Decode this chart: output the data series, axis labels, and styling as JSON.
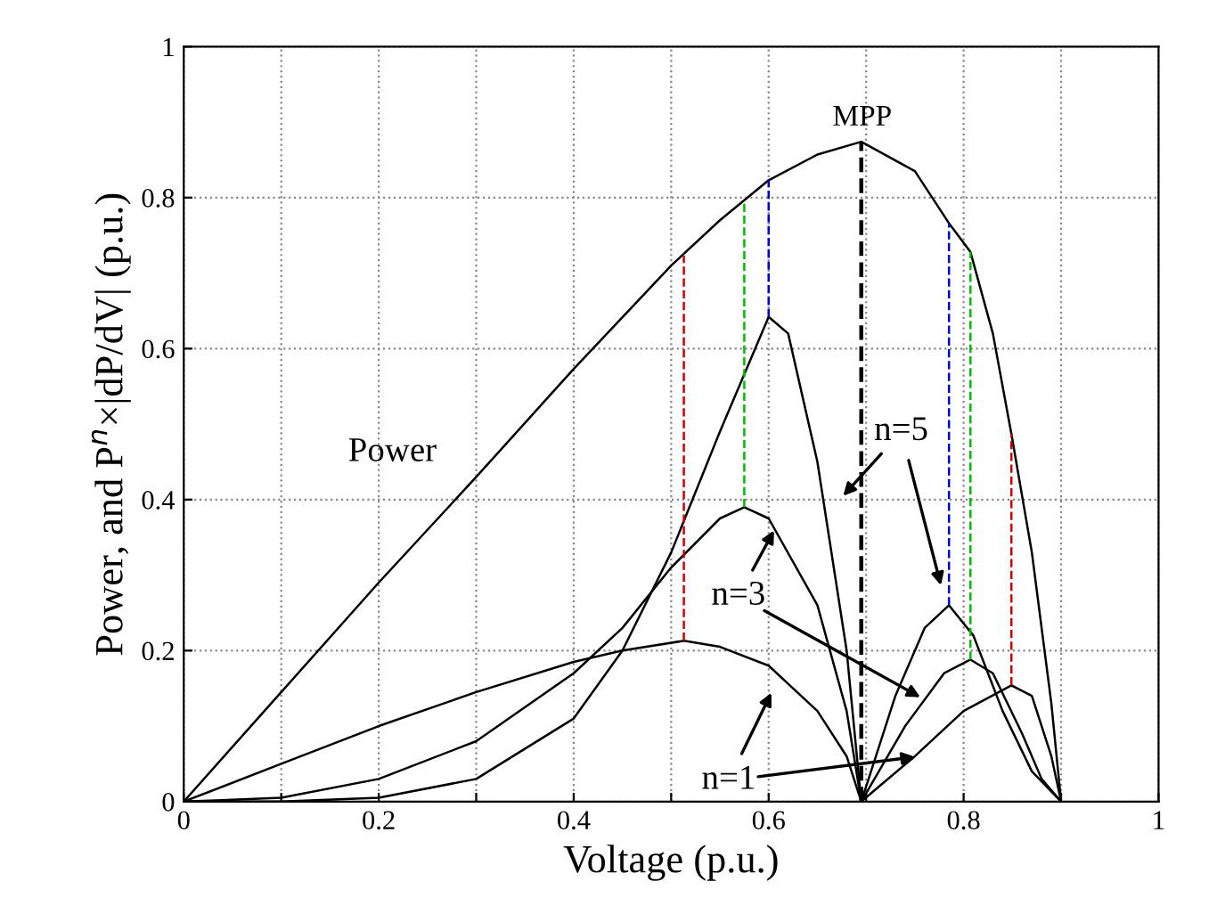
{
  "chart_data": {
    "type": "line",
    "xlabel": "Voltage (p.u.)",
    "ylabel": "Power, and P$^{n}$×|dP/dV| (p.u.)",
    "xlim": [
      0,
      1
    ],
    "ylim": [
      0,
      1
    ],
    "xticks": [
      0,
      {
        "value": 0.1,
        "label": null
      },
      0.2,
      {
        "value": 0.3,
        "label": null
      },
      0.4,
      {
        "value": 0.5,
        "label": null
      },
      0.6,
      {
        "value": 0.7,
        "label": null
      },
      0.8,
      {
        "value": 0.9,
        "label": null
      },
      1
    ],
    "yticks": [
      0,
      0.2,
      0.4,
      0.6,
      0.8,
      1
    ],
    "grid": true,
    "line_style": "solid",
    "marker": "none",
    "series": [
      {
        "color": "#000000",
        "x": [
          0,
          0.1,
          0.2,
          0.3,
          0.4,
          0.5,
          0.55,
          0.6,
          0.65,
          0.695,
          0.75,
          0.785,
          0.807,
          0.83,
          0.849,
          0.87,
          0.89,
          0.9
        ],
        "values": [
          0,
          0.145,
          0.29,
          0.43,
          0.573,
          0.71,
          0.77,
          0.823,
          0.857,
          0.874,
          0.835,
          0.766,
          0.728,
          0.62,
          0.487,
          0.33,
          0.13,
          0
        ]
      },
      {
        "color": "#000000",
        "x": [
          0,
          0.1,
          0.2,
          0.3,
          0.4,
          0.45,
          0.513,
          0.55,
          0.6,
          0.65,
          0.68,
          0.695,
          0.75,
          0.8,
          0.849,
          0.87,
          0.89,
          0.9
        ],
        "values": [
          0,
          0.05,
          0.1,
          0.145,
          0.185,
          0.2,
          0.213,
          0.205,
          0.18,
          0.12,
          0.06,
          0,
          0.06,
          0.12,
          0.154,
          0.14,
          0.06,
          0
        ]
      },
      {
        "color": "#000000",
        "x": [
          0,
          0.1,
          0.2,
          0.3,
          0.4,
          0.45,
          0.5,
          0.55,
          0.575,
          0.6,
          0.65,
          0.68,
          0.695,
          0.74,
          0.78,
          0.807,
          0.83,
          0.86,
          0.88,
          0.9
        ],
        "values": [
          0,
          0.005,
          0.03,
          0.08,
          0.17,
          0.23,
          0.31,
          0.375,
          0.39,
          0.375,
          0.26,
          0.12,
          0,
          0.1,
          0.17,
          0.188,
          0.17,
          0.09,
          0.03,
          0
        ]
      },
      {
        "color": "#000000",
        "x": [
          0,
          0.1,
          0.2,
          0.3,
          0.4,
          0.45,
          0.5,
          0.55,
          0.6,
          0.62,
          0.65,
          0.68,
          0.695,
          0.73,
          0.76,
          0.785,
          0.81,
          0.84,
          0.87,
          0.9
        ],
        "values": [
          0,
          0,
          0.005,
          0.03,
          0.11,
          0.2,
          0.33,
          0.49,
          0.642,
          0.62,
          0.45,
          0.2,
          0,
          0.14,
          0.23,
          0.26,
          0.22,
          0.12,
          0.04,
          0
        ]
      },
      {
        "color": "#cc0000",
        "line_style": "dashed",
        "x": [
          0.513,
          0.513
        ],
        "values": [
          0.213,
          0.723
        ]
      },
      {
        "color": "#cc0000",
        "line_style": "dashed",
        "x": [
          0.849,
          0.849
        ],
        "values": [
          0.154,
          0.487
        ]
      },
      {
        "color": "#00bb00",
        "line_style": "dashed",
        "x": [
          0.575,
          0.575
        ],
        "values": [
          0.39,
          0.795
        ]
      },
      {
        "color": "#00bb00",
        "line_style": "dashed",
        "x": [
          0.807,
          0.807
        ],
        "values": [
          0.188,
          0.728
        ]
      },
      {
        "color": "#0000cc",
        "line_style": "dashed",
        "x": [
          0.6,
          0.6
        ],
        "values": [
          0.642,
          0.823
        ]
      },
      {
        "color": "#0000cc",
        "line_style": "dashed",
        "x": [
          0.785,
          0.785
        ],
        "values": [
          0.26,
          0.766
        ]
      },
      {
        "color": "#000000",
        "line_style": "dashed",
        "x": [
          0.695,
          0.695
        ],
        "values": [
          0,
          0.874
        ]
      }
    ],
    "annotations": [
      "MPP",
      "Power",
      "n=5",
      {
        "text": "n=3",
        "x": 0.76,
        "y": 0.135
      },
      {
        "text": "n=1",
        "x": 0.755,
        "y": 0.06
      }
    ]
  }
}
